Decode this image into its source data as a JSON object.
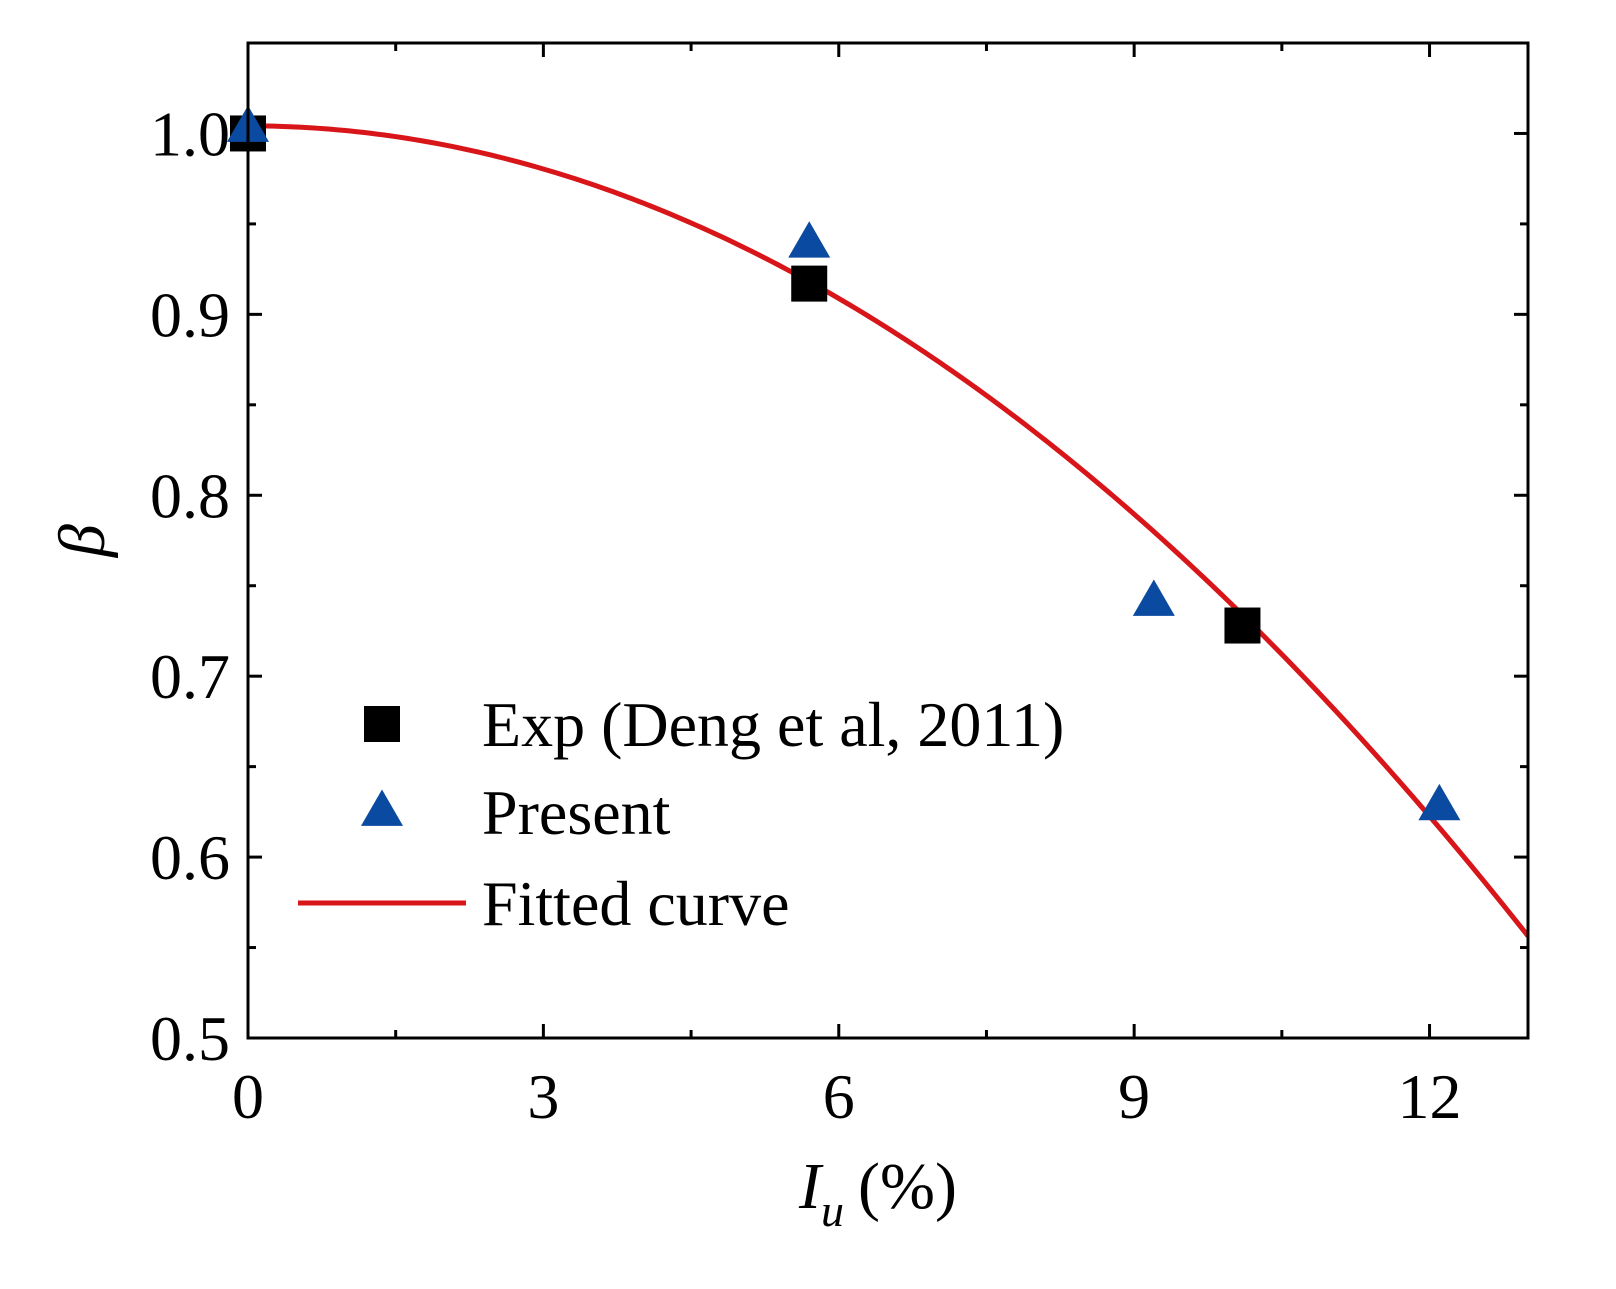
{
  "chart_data": {
    "type": "scatter",
    "title": "",
    "xlabel": {
      "main": "I",
      "sub": "u",
      "unit": "(%)"
    },
    "ylabel": "β",
    "xlim": [
      0,
      13
    ],
    "ylim": [
      0.5,
      1.05
    ],
    "x_major_ticks": [
      0,
      3,
      6,
      9,
      12
    ],
    "x_tick_labels": [
      "0",
      "3",
      "6",
      "9",
      "12"
    ],
    "x_minor_ticks": [
      1.5,
      4.5,
      7.5,
      10.5
    ],
    "y_major_ticks": [
      0.5,
      0.6,
      0.7,
      0.8,
      0.9,
      1.0
    ],
    "y_tick_labels": [
      "0.5",
      "0.6",
      "0.7",
      "0.8",
      "0.9",
      "1.0"
    ],
    "y_minor_ticks": [
      0.55,
      0.65,
      0.75,
      0.85,
      0.95
    ],
    "grid": false,
    "legend_position": "bottom-left",
    "series": [
      {
        "name": "Exp (Deng et al, 2011)",
        "marker": "square",
        "color": "#000000",
        "points": [
          [
            0.0,
            1.0
          ],
          [
            5.7,
            0.917
          ],
          [
            10.1,
            0.728
          ]
        ]
      },
      {
        "name": "Present",
        "marker": "triangle",
        "color": "#0a4aa0",
        "points": [
          [
            0.0,
            1.003
          ],
          [
            5.7,
            0.939
          ],
          [
            9.2,
            0.741
          ],
          [
            12.1,
            0.628
          ]
        ]
      },
      {
        "name": "Fitted curve",
        "marker": "line",
        "color": "#d8161a",
        "fit": {
          "a": 1.0042,
          "b": 0.0,
          "c": -0.00265,
          "x_start": 0,
          "x_end": 13
        }
      }
    ]
  }
}
